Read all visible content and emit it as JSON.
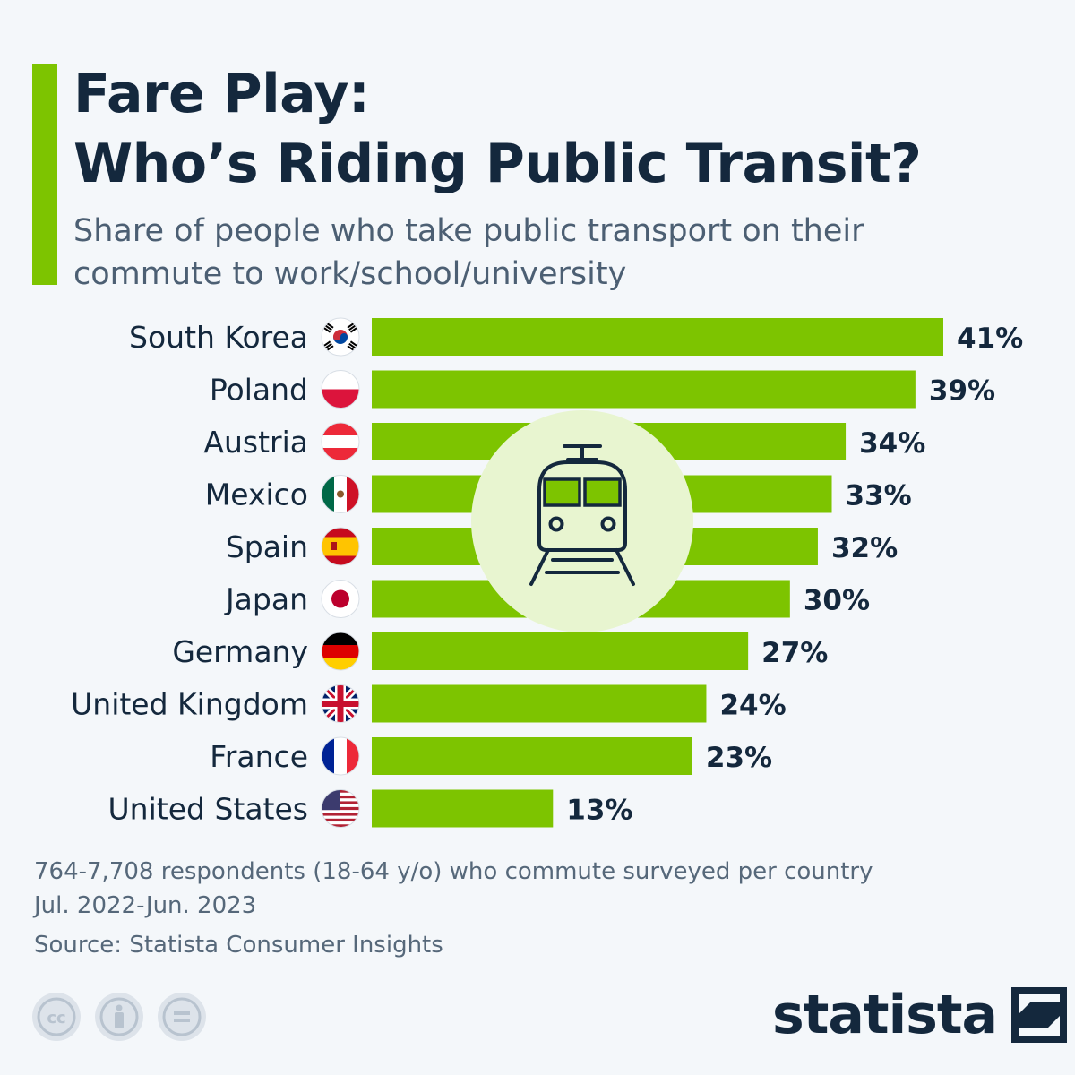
{
  "header": {
    "title_line1": "Fare Play:",
    "title_line2": "Who’s Riding Public Transit?",
    "subtitle_line1": "Share of people who take public transport on their",
    "subtitle_line2": "commute to work/school/university"
  },
  "chart_data": {
    "type": "bar",
    "orientation": "horizontal",
    "categories": [
      "South Korea",
      "Poland",
      "Austria",
      "Mexico",
      "Spain",
      "Japan",
      "Germany",
      "United Kingdom",
      "France",
      "United States"
    ],
    "values": [
      41,
      39,
      34,
      33,
      32,
      30,
      27,
      24,
      23,
      13
    ],
    "labels": [
      "41%",
      "39%",
      "34%",
      "33%",
      "32%",
      "30%",
      "27%",
      "24%",
      "23%",
      "13%"
    ],
    "flags": [
      "flag-south-korea",
      "flag-poland",
      "flag-austria",
      "flag-mexico",
      "flag-spain",
      "flag-japan",
      "flag-germany",
      "flag-united-kingdom",
      "flag-france",
      "flag-united-states"
    ],
    "unit": "%",
    "xlim": [
      0,
      41
    ],
    "bar_color": "#7dc400",
    "center_icon": "train-icon"
  },
  "footer": {
    "respondents": "764-7,708 respondents (18-64 y/o) who commute surveyed per country",
    "period": "Jul. 2022-Jun. 2023",
    "source": "Source: Statista Consumer Insights",
    "license_icons": [
      "creative-commons-icon",
      "attribution-icon",
      "no-derivatives-icon"
    ],
    "brand": "statista"
  },
  "colors": {
    "accent": "#7dc400",
    "title": "#14283d",
    "subtitle": "#4c5f73",
    "background": "#f4f7fa",
    "icon_circle": "#e8f5d0"
  }
}
